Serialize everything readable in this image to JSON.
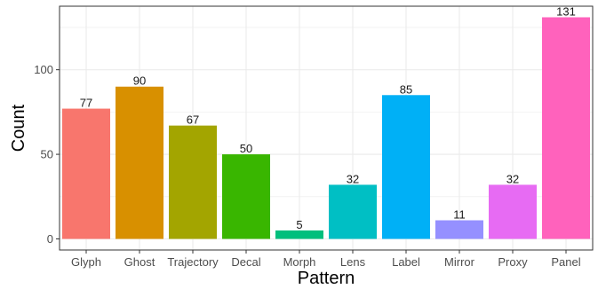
{
  "chart_data": {
    "type": "bar",
    "title": "",
    "xlabel": "Pattern",
    "ylabel": "Count",
    "categories": [
      "Glyph",
      "Ghost",
      "Trajectory",
      "Decal",
      "Morph",
      "Lens",
      "Label",
      "Mirror",
      "Proxy",
      "Panel"
    ],
    "values": [
      77,
      90,
      67,
      50,
      5,
      32,
      85,
      11,
      32,
      131
    ],
    "colors": [
      "#F8766D",
      "#D89000",
      "#A3A500",
      "#39B600",
      "#00BF7D",
      "#00BFC4",
      "#00B0F6",
      "#9590FF",
      "#E76BF3",
      "#FF62BC"
    ],
    "ylim": [
      -6.55,
      137.55
    ],
    "yticks": [
      0,
      50,
      100
    ],
    "grid": true,
    "legend": "none"
  }
}
